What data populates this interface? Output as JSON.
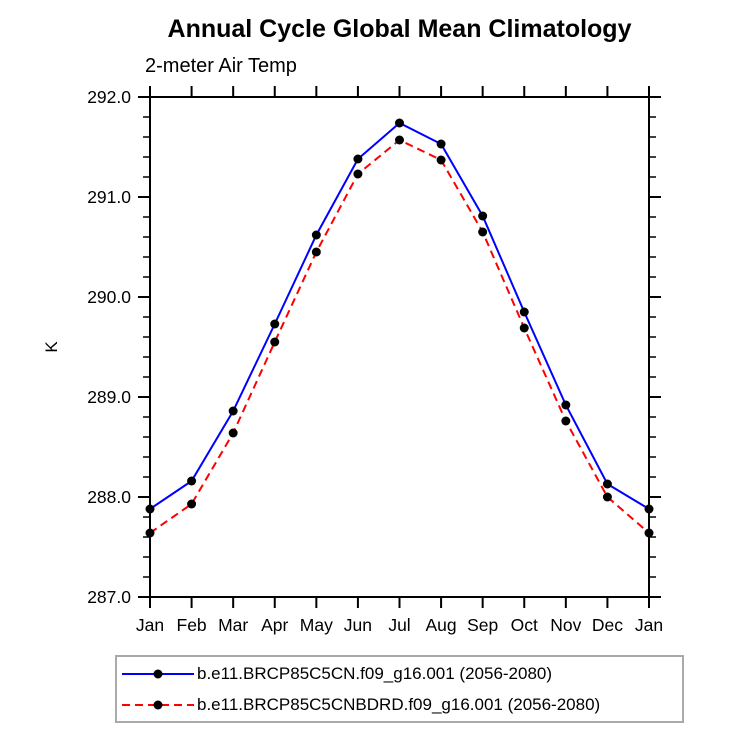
{
  "chart_data": {
    "type": "line",
    "title": "Annual Cycle Global Mean Climatology",
    "subtitle": "2-meter Air Temp",
    "ylabel": "K",
    "categories": [
      "Jan",
      "Feb",
      "Mar",
      "Apr",
      "May",
      "Jun",
      "Jul",
      "Aug",
      "Sep",
      "Oct",
      "Nov",
      "Dec",
      "Jan"
    ],
    "ylim": [
      287.0,
      292.0
    ],
    "ytick_major_interval": 1.0,
    "ytick_minor_interval": 0.2,
    "ytick_labels": [
      "292.0",
      "291.0",
      "290.0",
      "289.0",
      "288.0",
      "287.0"
    ],
    "grid": false,
    "legend_position": "bottom",
    "axis_color": "#000000",
    "series": [
      {
        "name": "b.e11.BRCP85C5CN.f09_g16.001 (2056-2080)",
        "color": "#0000ff",
        "line_style": "solid",
        "marker": "filled-circle",
        "marker_color": "#000000",
        "values": [
          287.88,
          288.16,
          288.86,
          289.73,
          290.62,
          291.38,
          291.74,
          291.53,
          290.81,
          289.85,
          288.92,
          288.13,
          287.88
        ]
      },
      {
        "name": "b.e11.BRCP85C5CNBDRD.f09_g16.001 (2056-2080)",
        "color": "#ff0000",
        "line_style": "dashed",
        "marker": "filled-circle",
        "marker_color": "#000000",
        "values": [
          287.64,
          287.93,
          288.64,
          289.55,
          290.45,
          291.23,
          291.57,
          291.37,
          290.65,
          289.69,
          288.76,
          288.0,
          287.64
        ]
      }
    ]
  }
}
